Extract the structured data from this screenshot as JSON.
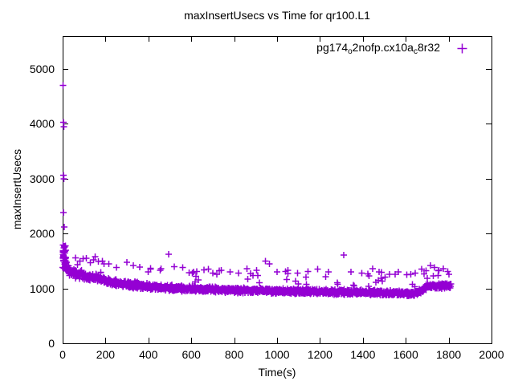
{
  "page": {
    "background": "#ffffff",
    "text_color": "#000000"
  },
  "chart_data": {
    "type": "scatter",
    "title": "maxInsertUsecs vs Time for qr100.L1",
    "xlabel": "Time(s)",
    "ylabel": "maxInsertUsecs",
    "xlim": [
      0,
      2000
    ],
    "ylim": [
      0,
      5600
    ],
    "xticks": [
      0,
      200,
      400,
      600,
      800,
      1000,
      1200,
      1400,
      1600,
      1800,
      2000
    ],
    "yticks": [
      0,
      1000,
      2000,
      3000,
      4000,
      5000
    ],
    "grid": false,
    "legend_position": "top-right-inside",
    "series": [
      {
        "name": "pg174o2nofp.cx10ac8r32",
        "label_parts": [
          {
            "text": "pg174"
          },
          {
            "sub": "o"
          },
          {
            "text": "2nofp.cx10a"
          },
          {
            "sub": "c"
          },
          {
            "text": "8r32"
          }
        ],
        "marker": "plus",
        "marker_glyph": "+",
        "color": "#9400d3",
        "t_range": [
          0,
          1810
        ],
        "t_step": 1,
        "spike_points": [
          [
            2,
            4700
          ],
          [
            4,
            4030
          ],
          [
            5,
            3950
          ],
          [
            3,
            3060
          ],
          [
            6,
            3000
          ],
          [
            4,
            2380
          ],
          [
            7,
            2120
          ]
        ],
        "startup_cluster": {
          "t_max": 14,
          "per_t": 2,
          "range": [
            1350,
            1850
          ]
        },
        "band_envelope": [
          [
            0,
            1600,
            250
          ],
          [
            10,
            1450,
            150
          ],
          [
            25,
            1330,
            110
          ],
          [
            50,
            1280,
            95
          ],
          [
            100,
            1230,
            90
          ],
          [
            150,
            1190,
            85
          ],
          [
            200,
            1140,
            70
          ],
          [
            300,
            1070,
            70
          ],
          [
            400,
            1040,
            65
          ],
          [
            500,
            1010,
            60
          ],
          [
            700,
            980,
            60
          ],
          [
            900,
            960,
            55
          ],
          [
            1100,
            945,
            55
          ],
          [
            1300,
            935,
            55
          ],
          [
            1500,
            920,
            50
          ],
          [
            1640,
            905,
            50
          ],
          [
            1670,
            950,
            55
          ],
          [
            1700,
            1040,
            60
          ],
          [
            1810,
            1050,
            60
          ]
        ],
        "sprinkle": {
          "prob": 0.032,
          "min": 40,
          "max": 330
        },
        "outlier_points": [
          [
            60,
            1560
          ],
          [
            95,
            1540
          ],
          [
            110,
            1550
          ],
          [
            130,
            1470
          ],
          [
            185,
            1500
          ],
          [
            215,
            1450
          ],
          [
            250,
            1380
          ],
          [
            300,
            1480
          ],
          [
            330,
            1420
          ],
          [
            360,
            1390
          ],
          [
            410,
            1350
          ],
          [
            455,
            1330
          ],
          [
            495,
            1620
          ],
          [
            520,
            1400
          ],
          [
            560,
            1380
          ],
          [
            610,
            1300
          ],
          [
            660,
            1340
          ],
          [
            700,
            1280
          ],
          [
            740,
            1330
          ],
          [
            780,
            1300
          ],
          [
            820,
            1280
          ],
          [
            860,
            1360
          ],
          [
            905,
            1330
          ],
          [
            945,
            1500
          ],
          [
            965,
            1450
          ],
          [
            1000,
            1300
          ],
          [
            1050,
            1330
          ],
          [
            1095,
            1280
          ],
          [
            1145,
            1310
          ],
          [
            1190,
            1350
          ],
          [
            1240,
            1300
          ],
          [
            1310,
            1610
          ],
          [
            1345,
            1300
          ],
          [
            1395,
            1280
          ],
          [
            1445,
            1360
          ],
          [
            1475,
            1300
          ],
          [
            1525,
            1260
          ],
          [
            1565,
            1300
          ],
          [
            1605,
            1250
          ],
          [
            1645,
            1280
          ],
          [
            1675,
            1350
          ],
          [
            1695,
            1320
          ],
          [
            1715,
            1420
          ],
          [
            1735,
            1380
          ],
          [
            1755,
            1330
          ],
          [
            1775,
            1360
          ],
          [
            1795,
            1310
          ]
        ]
      }
    ]
  }
}
